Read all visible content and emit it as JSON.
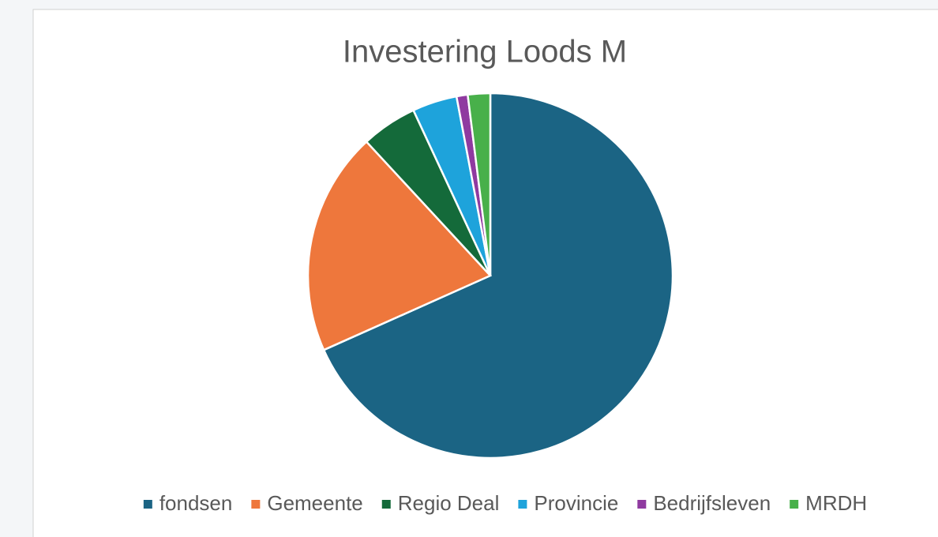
{
  "chart_data": {
    "type": "pie",
    "title": "Investering Loods M",
    "categories": [
      "fondsen",
      "Gemeente",
      "Regio Deal",
      "Provincie",
      "Bedrijfsleven",
      "MRDH"
    ],
    "values": [
      69,
      20,
      5,
      4,
      1,
      2
    ],
    "colors": [
      "#1b6484",
      "#ee773c",
      "#146a3a",
      "#1ea3db",
      "#8f3aa0",
      "#48b04a"
    ],
    "legend": "bottom"
  }
}
